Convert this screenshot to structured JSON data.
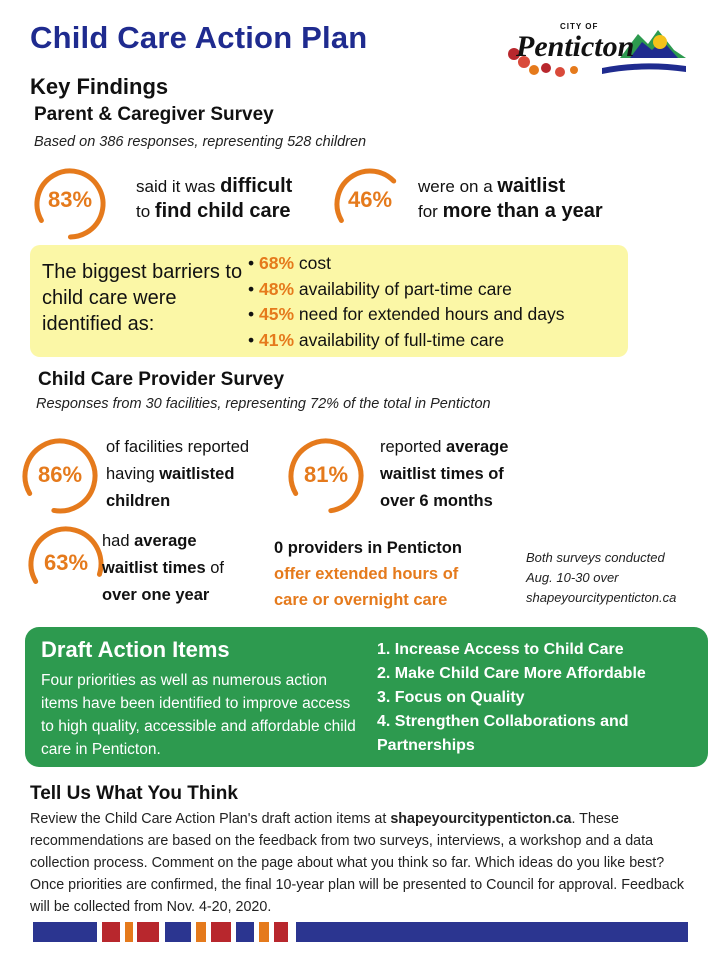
{
  "header": {
    "title": "Child Care Action Plan",
    "logo": {
      "city_of": "CITY OF",
      "name": "Penticton"
    }
  },
  "key_findings": {
    "heading": "Key Findings",
    "parent_survey": {
      "heading": "Parent & Caregiver Survey",
      "subtitle": "Based on 386 responses, representing 528 children",
      "stats": [
        {
          "pct": "83%",
          "value": 0.83,
          "line1_pre": "said it was ",
          "line1_bold": "difficult",
          "line2_pre": "to ",
          "line2_bold": "find child care"
        },
        {
          "pct": "46%",
          "value": 0.46,
          "line1_pre": "were on a ",
          "line1_bold": "waitlist",
          "line2_pre": "for ",
          "line2_bold": "more than a year"
        }
      ],
      "barriers": {
        "lead": "The biggest barriers to child care were identified as:",
        "items": [
          {
            "pct": "68%",
            "label": "cost"
          },
          {
            "pct": "48%",
            "label": "availability of part-time care"
          },
          {
            "pct": "45%",
            "label": "need for extended hours and days"
          },
          {
            "pct": "41%",
            "label": "availability of full-time care"
          }
        ]
      }
    },
    "provider_survey": {
      "heading": "Child Care Provider Survey",
      "subtitle": "Responses from 30 facilities, representing 72% of the total in Penticton",
      "stats": [
        {
          "pct": "86%",
          "value": 0.86,
          "l1": "of facilities reported",
          "l2_pre": "having ",
          "l2_bold": "waitlisted",
          "l3_bold": "children"
        },
        {
          "pct": "81%",
          "value": 0.81,
          "l1_pre": "reported ",
          "l1_bold": "average",
          "l2_bold": "waitlist times of",
          "l3_bold": "over 6 months"
        },
        {
          "pct": "63%",
          "value": 0.63,
          "l1_pre": "had ",
          "l1_bold": "average",
          "l2_bold": "waitlist times",
          "l2_post": " of",
          "l3_bold": "over one year"
        }
      ],
      "zero_providers": {
        "line1": "0 providers in Penticton",
        "line2": "offer extended hours of",
        "line3": "care or overnight care"
      },
      "note": {
        "line1": "Both surveys conducted",
        "line2": "Aug. 10-30 over",
        "line3": "shapeyourcitypenticton.ca"
      }
    }
  },
  "draft_actions": {
    "heading": "Draft Action Items",
    "text": "Four priorities as well as numerous action items have been identified to improve access to high quality, accessible and affordable child care in Penticton.",
    "items": [
      "1. Increase Access to Child Care",
      "2. Make Child Care More Affordable",
      "3. Focus on Quality",
      "4. Strengthen Collaborations and Partnerships"
    ]
  },
  "tell_us": {
    "heading": "Tell Us What You Think",
    "body_pre": "Review the Child Care Action Plan's draft action items at ",
    "body_link": "shapeyourcitypenticton.ca",
    "body_post": ". These recommendations are based on the feedback from two surveys, interviews, a workshop and a data collection process. Comment on the page about what you think so far. Which ideas do you like best? Once priorities are confirmed, the final 10-year plan will be presented to Council for approval. Feedback will be collected from Nov. 4-20, 2020."
  },
  "colors": {
    "title_blue": "#1f2b8f",
    "accent_orange": "#e57a1c",
    "barrier_yellow": "#fbf7a6",
    "action_green": "#2d9a4f",
    "footer_blue": "#2b3590",
    "footer_red": "#b8272d",
    "footer_orange": "#e57a1c"
  }
}
